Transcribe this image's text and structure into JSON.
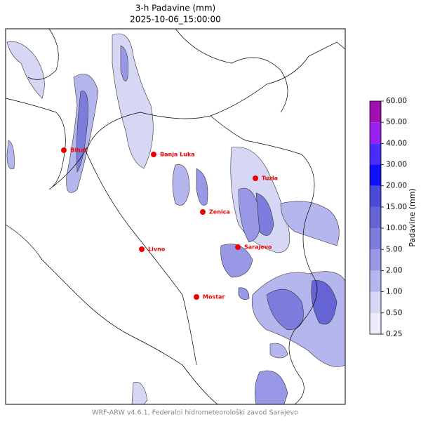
{
  "title": "3-h Padavine (mm)",
  "subtitle": "2025-10-06_15:00:00",
  "cities": [
    "Bihać",
    "Banja Luka",
    "Tuzla",
    "Zenica",
    "Sarajevo",
    "Livno",
    "Mostar"
  ],
  "colorbar": {
    "label": "Padavine (mm)",
    "levels": [
      {
        "value": 0.25,
        "label": "0.25"
      },
      {
        "value": 0.5,
        "label": "0.50"
      },
      {
        "value": 1,
        "label": "1.00"
      },
      {
        "value": 2,
        "label": "2.00"
      },
      {
        "value": 5,
        "label": "5.00"
      },
      {
        "value": 10,
        "label": "10.00"
      },
      {
        "value": 15,
        "label": "15.00"
      },
      {
        "value": 20,
        "label": "20.00"
      },
      {
        "value": 30,
        "label": "30.00"
      },
      {
        "value": 40,
        "label": "40.00"
      },
      {
        "value": 50,
        "label": "50.00"
      },
      {
        "value": 60,
        "label": "60.00"
      }
    ],
    "colors": [
      "#ececfa",
      "#d6d6f5",
      "#b6b6ee",
      "#9898e6",
      "#7c7cdd",
      "#6464d4",
      "#4a4ad8",
      "#1010ff",
      "#4a2cff",
      "#9a20f0",
      "#a010b0"
    ]
  },
  "footer": "WRF-ARW v4.6.1, Federalni hidrometeorološki zavod Sarajevo"
}
